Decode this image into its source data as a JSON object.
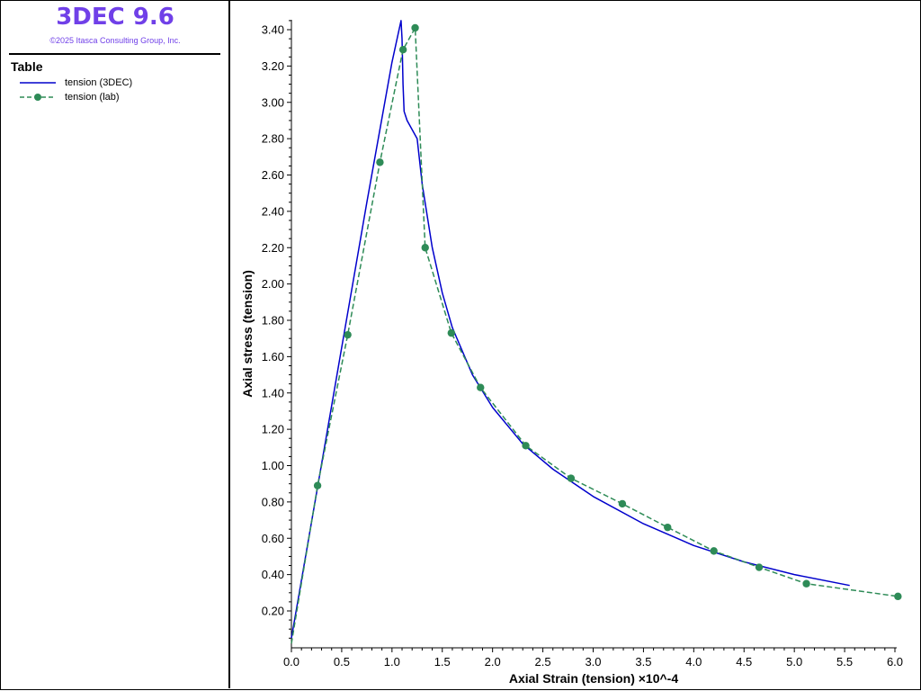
{
  "app": {
    "title": "3DEC 9.6",
    "copyright": "©2025 Itasca Consulting Group, Inc."
  },
  "legend": {
    "title": "Table",
    "items": [
      {
        "label": "tension (3DEC)",
        "color": "#0000cc",
        "style": "solid",
        "marker": "none"
      },
      {
        "label": "tension (lab)",
        "color": "#2e8b57",
        "style": "dashed",
        "marker": "circle"
      }
    ]
  },
  "chart_data": {
    "type": "line",
    "xlabel": "Axial Strain (tension)  ×10^-4",
    "ylabel": "Axial stress (tension)",
    "xlim": [
      0.0,
      6.0
    ],
    "ylim": [
      0.0,
      3.45
    ],
    "x_ticks": [
      "0.0",
      "0.5",
      "1.0",
      "1.5",
      "2.0",
      "2.5",
      "3.0",
      "3.5",
      "4.0",
      "4.5",
      "5.0",
      "5.5",
      "6.0"
    ],
    "y_ticks": [
      "0.20",
      "0.40",
      "0.60",
      "0.80",
      "1.00",
      "1.20",
      "1.40",
      "1.60",
      "1.80",
      "2.00",
      "2.20",
      "2.40",
      "2.60",
      "2.80",
      "3.00",
      "3.20",
      "3.40"
    ],
    "grid": false,
    "series": [
      {
        "name": "tension (3DEC)",
        "color": "#0000cc",
        "style": "solid",
        "marker": "none",
        "x": [
          0.0,
          0.25,
          0.5,
          0.75,
          1.0,
          1.09,
          1.1,
          1.11,
          1.12,
          1.15,
          1.2,
          1.25,
          1.3,
          1.4,
          1.5,
          1.6,
          1.8,
          2.0,
          2.3,
          2.6,
          3.0,
          3.5,
          4.0,
          4.5,
          5.0,
          5.55
        ],
        "y": [
          0.05,
          0.85,
          1.65,
          2.45,
          3.22,
          3.45,
          3.35,
          3.1,
          2.95,
          2.9,
          2.85,
          2.8,
          2.55,
          2.2,
          1.95,
          1.76,
          1.5,
          1.32,
          1.12,
          0.98,
          0.83,
          0.68,
          0.56,
          0.47,
          0.4,
          0.34
        ]
      },
      {
        "name": "tension (lab)",
        "color": "#2e8b57",
        "style": "dashed",
        "marker": "circle",
        "x": [
          0.0,
          0.26,
          0.56,
          0.88,
          1.11,
          1.23,
          1.33,
          1.59,
          1.88,
          2.33,
          2.78,
          3.29,
          3.74,
          4.2,
          4.65,
          5.12,
          6.03
        ],
        "y": [
          0.02,
          0.89,
          1.72,
          2.67,
          3.29,
          3.41,
          2.2,
          1.73,
          1.43,
          1.11,
          0.93,
          0.79,
          0.66,
          0.53,
          0.44,
          0.35,
          0.28
        ]
      }
    ]
  }
}
